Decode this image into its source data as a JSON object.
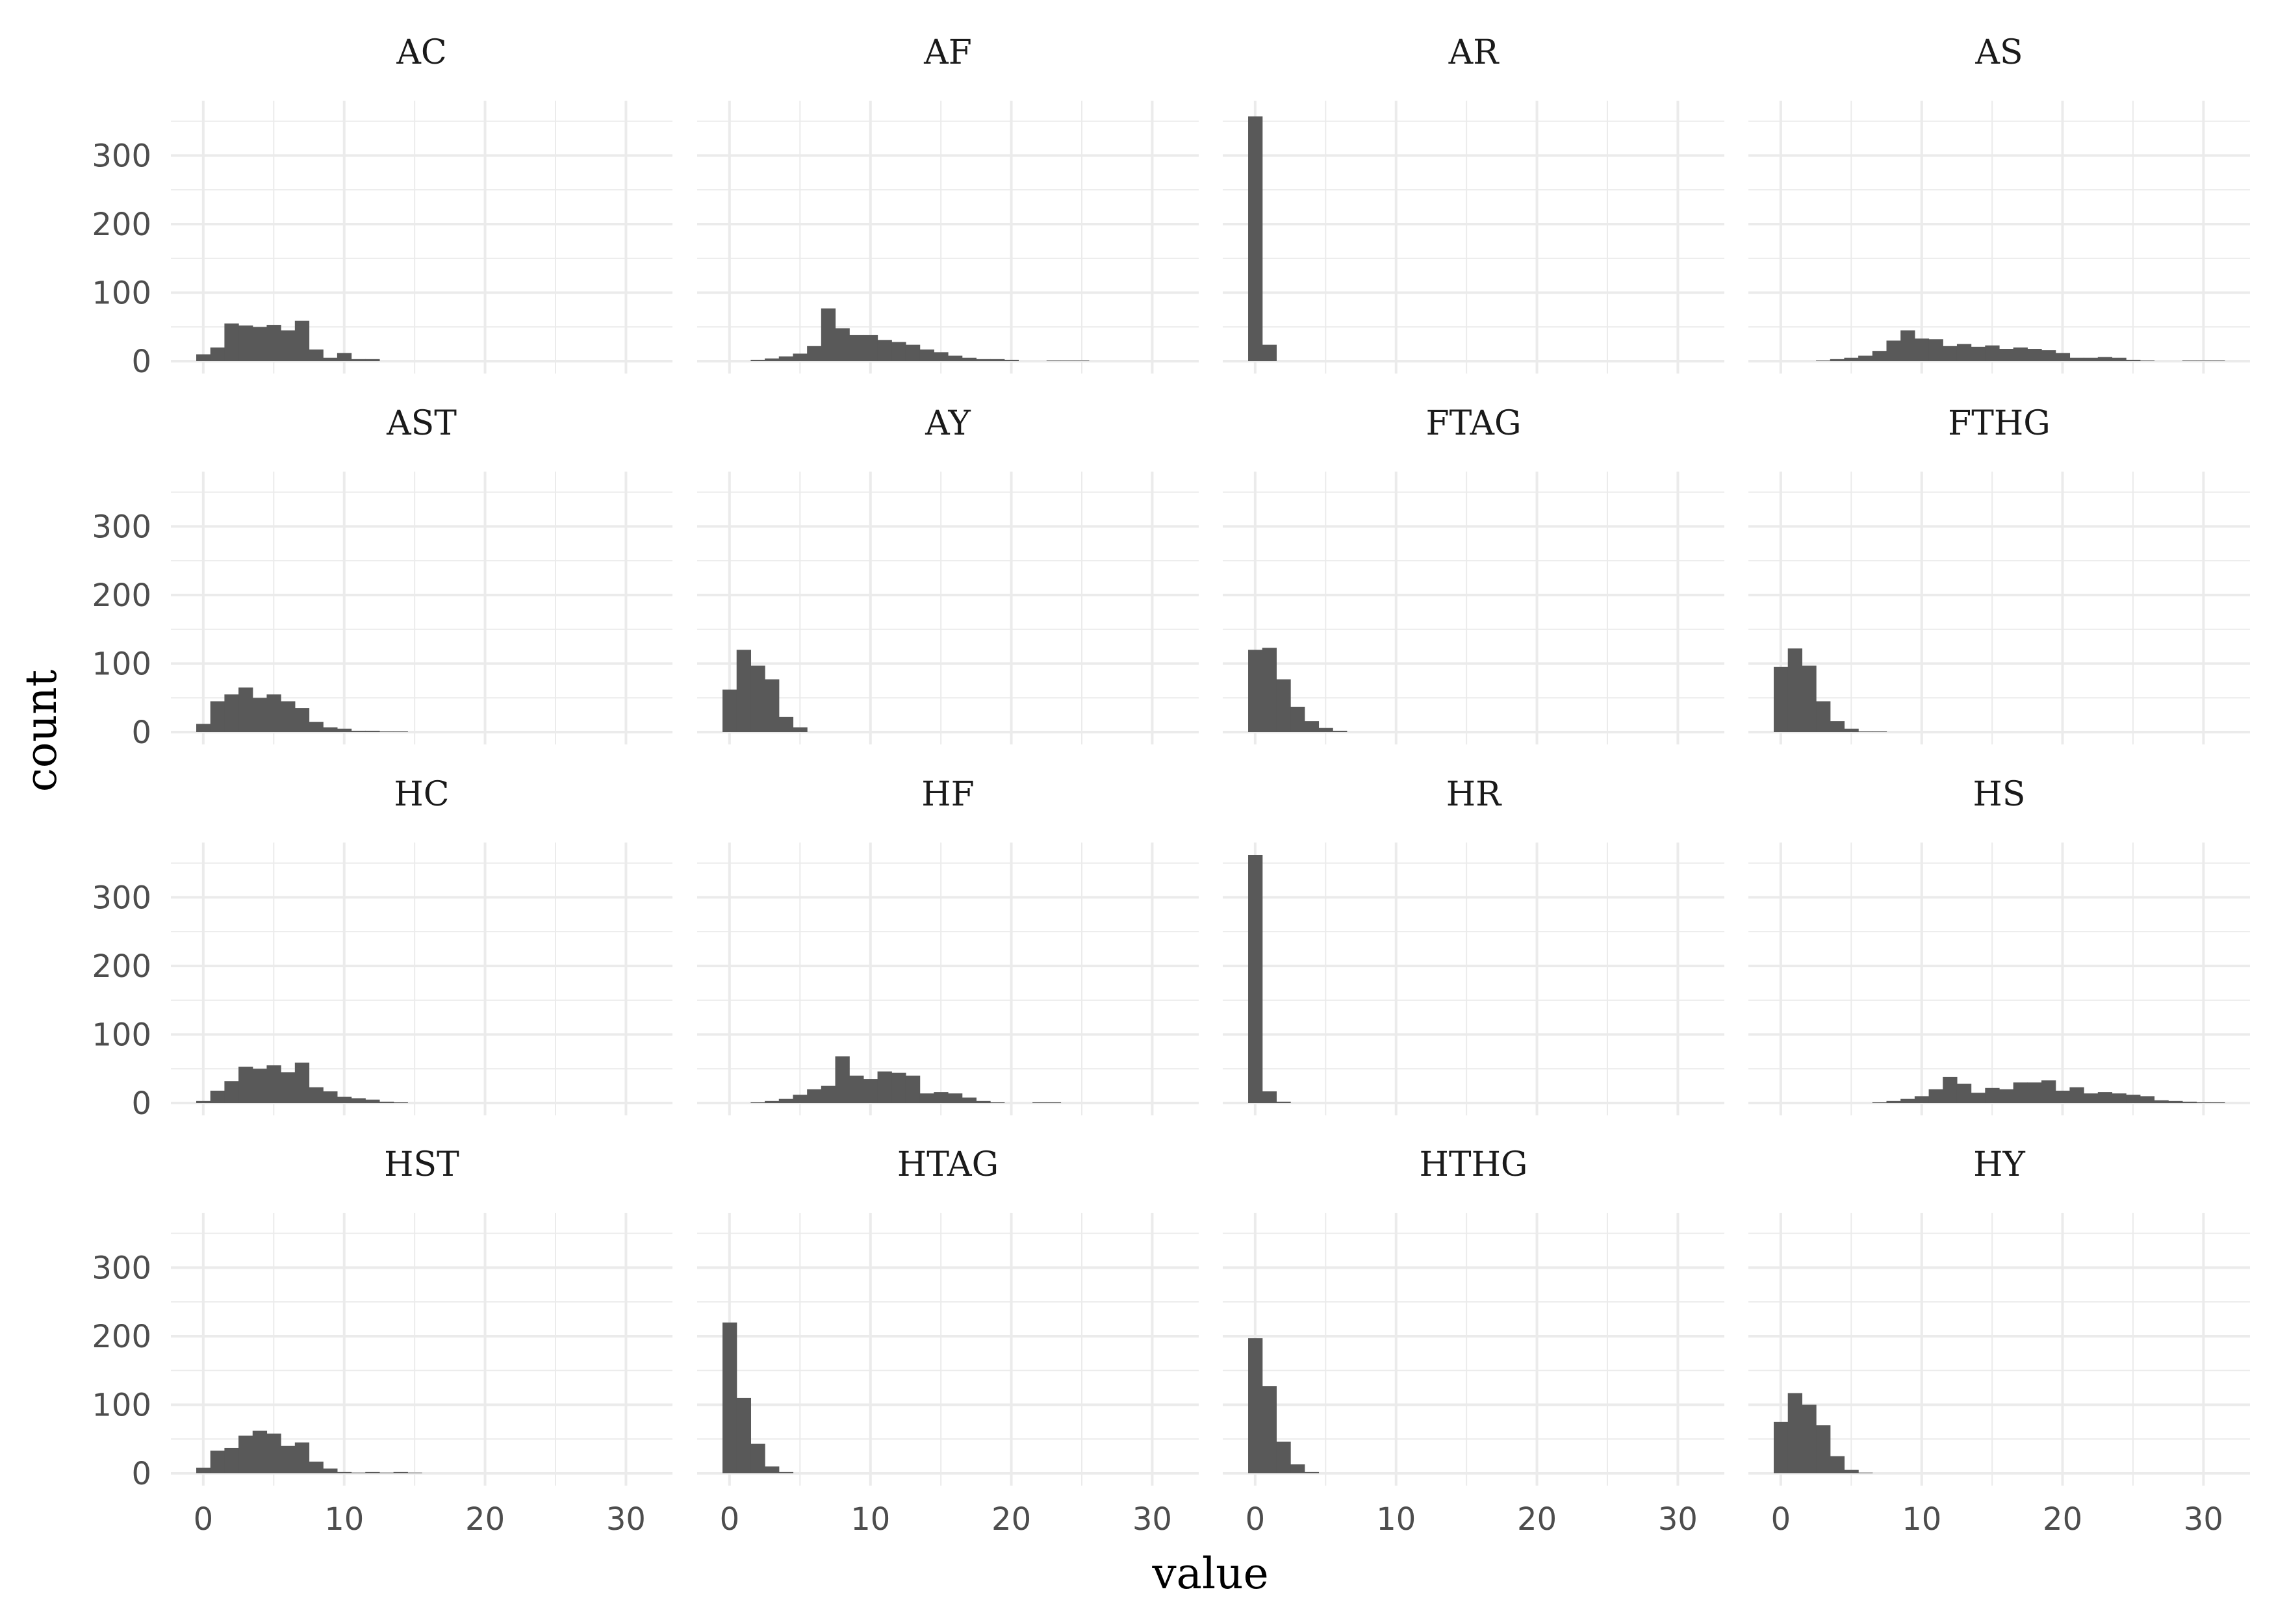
{
  "chart_data": {
    "type": "bar",
    "subtype": "faceted-histogram",
    "xlabel": "value",
    "ylabel": "count",
    "xlim": [
      -2.3,
      33.3
    ],
    "ylim": [
      -18,
      380
    ],
    "x_ticks": [
      0,
      10,
      20,
      30
    ],
    "y_ticks": [
      0,
      100,
      200,
      300
    ],
    "grid": true,
    "bar_color": "#595959",
    "grid_color": "#ebebeb",
    "bins": {
      "start": -0.5,
      "width": 1.0
    },
    "facets": [
      {
        "name": "AC",
        "counts": [
          10,
          20,
          55,
          52,
          50,
          53,
          45,
          59,
          17,
          5,
          12,
          3,
          3
        ]
      },
      {
        "name": "AF",
        "counts": [
          0,
          0,
          2,
          4,
          7,
          11,
          22,
          77,
          48,
          38,
          38,
          31,
          28,
          24,
          17,
          13,
          8,
          5,
          3,
          3,
          2,
          0,
          0,
          1,
          1,
          1
        ]
      },
      {
        "name": "AR",
        "counts": [
          357,
          24
        ]
      },
      {
        "name": "AS",
        "counts": [
          0,
          0,
          0,
          1,
          3,
          5,
          8,
          15,
          30,
          45,
          33,
          32,
          22,
          25,
          21,
          23,
          18,
          20,
          18,
          16,
          12,
          5,
          5,
          6,
          5,
          2,
          1,
          0,
          0,
          1,
          1,
          1
        ]
      },
      {
        "name": "AST",
        "counts": [
          12,
          45,
          55,
          65,
          50,
          55,
          45,
          35,
          15,
          7,
          5,
          2,
          2,
          1,
          1
        ]
      },
      {
        "name": "AY",
        "counts": [
          62,
          120,
          97,
          77,
          22,
          7
        ]
      },
      {
        "name": "FTAG",
        "counts": [
          120,
          123,
          77,
          37,
          16,
          6,
          2
        ]
      },
      {
        "name": "FTHG",
        "counts": [
          95,
          122,
          97,
          45,
          16,
          5,
          1,
          1
        ]
      },
      {
        "name": "HC",
        "counts": [
          3,
          18,
          32,
          53,
          50,
          55,
          45,
          59,
          23,
          17,
          9,
          7,
          5,
          2,
          1
        ]
      },
      {
        "name": "HF",
        "counts": [
          0,
          0,
          1,
          3,
          6,
          12,
          20,
          25,
          68,
          40,
          35,
          46,
          44,
          40,
          14,
          16,
          14,
          8,
          3,
          1,
          0,
          0,
          1,
          1
        ]
      },
      {
        "name": "HR",
        "counts": [
          362,
          17,
          2
        ]
      },
      {
        "name": "HS",
        "counts": [
          0,
          0,
          0,
          0,
          0,
          0,
          0,
          1,
          3,
          6,
          10,
          20,
          38,
          28,
          15,
          22,
          20,
          30,
          30,
          33,
          18,
          23,
          14,
          16,
          14,
          12,
          10,
          4,
          3,
          2,
          1,
          1
        ]
      },
      {
        "name": "HST",
        "counts": [
          8,
          33,
          37,
          55,
          62,
          58,
          40,
          45,
          17,
          7,
          2,
          1,
          2,
          1,
          2,
          1
        ]
      },
      {
        "name": "HTAG",
        "counts": [
          220,
          110,
          43,
          10,
          2
        ]
      },
      {
        "name": "HTHG",
        "counts": [
          197,
          127,
          46,
          13,
          2
        ]
      },
      {
        "name": "HY",
        "counts": [
          75,
          117,
          100,
          70,
          25,
          5,
          1
        ]
      }
    ]
  }
}
